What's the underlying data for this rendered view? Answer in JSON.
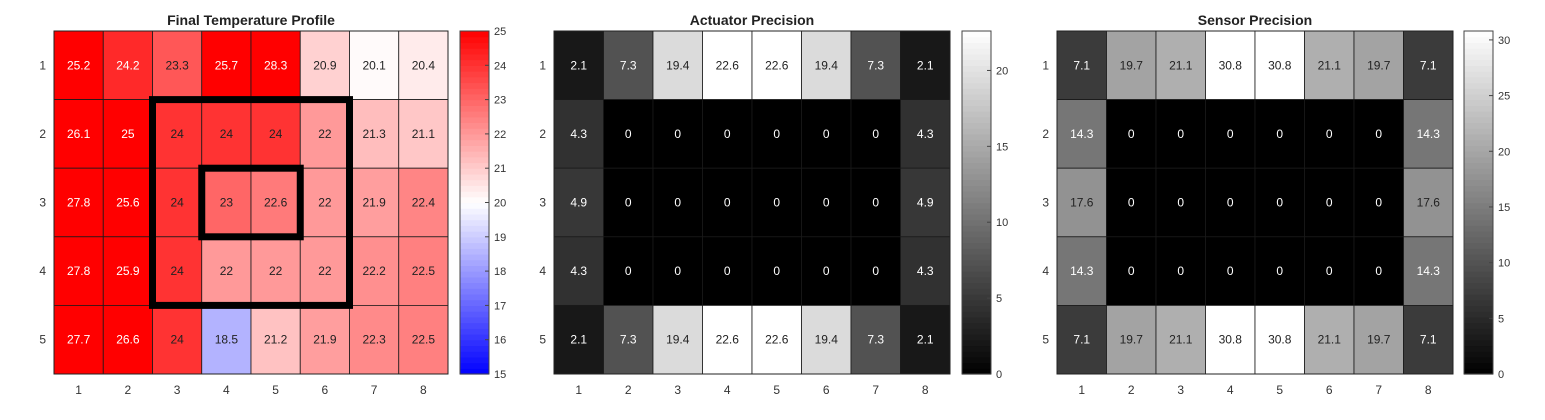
{
  "figure": {
    "background": "#ffffff",
    "grid_line_color": "#1a1a1a"
  },
  "chart_data": [
    {
      "type": "heatmap",
      "title": "Final Temperature Profile",
      "colormap": "blue-white-red",
      "x_ticks": [
        "1",
        "2",
        "3",
        "4",
        "5",
        "6",
        "7",
        "8"
      ],
      "y_ticks": [
        "1",
        "2",
        "3",
        "4",
        "5"
      ],
      "values": [
        [
          25.2,
          24.2,
          23.3,
          25.7,
          28.3,
          20.9,
          20.1,
          20.4
        ],
        [
          26.1,
          25,
          24,
          24,
          24,
          22,
          21.3,
          21.1
        ],
        [
          27.8,
          25.6,
          24,
          23,
          22.6,
          22,
          21.9,
          22.4
        ],
        [
          27.8,
          25.9,
          24,
          22,
          22,
          22,
          22.2,
          22.5
        ],
        [
          27.7,
          26.6,
          24,
          18.5,
          21.2,
          21.9,
          22.3,
          22.5
        ]
      ],
      "clim": [
        15,
        25
      ],
      "colorbar_ticks": [
        15,
        16,
        17,
        18,
        19,
        20,
        21,
        22,
        23,
        24,
        25
      ],
      "outlines": [
        {
          "cols": [
            3,
            6
          ],
          "rows": [
            2,
            4
          ]
        },
        {
          "cols": [
            4,
            5
          ],
          "rows": [
            3,
            3
          ]
        }
      ]
    },
    {
      "type": "heatmap",
      "title": "Actuator Precision",
      "colormap": "gray",
      "x_ticks": [
        "1",
        "2",
        "3",
        "4",
        "5",
        "6",
        "7",
        "8"
      ],
      "y_ticks": [
        "1",
        "2",
        "3",
        "4",
        "5"
      ],
      "values": [
        [
          2.1,
          7.3,
          19.4,
          22.6,
          22.6,
          19.4,
          7.3,
          2.1
        ],
        [
          4.3,
          0,
          0,
          0,
          0,
          0,
          0,
          4.3
        ],
        [
          4.9,
          0,
          0,
          0,
          0,
          0,
          0,
          4.9
        ],
        [
          4.3,
          0,
          0,
          0,
          0,
          0,
          0,
          4.3
        ],
        [
          2.1,
          7.3,
          19.4,
          22.6,
          22.6,
          19.4,
          7.3,
          2.1
        ]
      ],
      "clim": [
        0,
        22.6
      ],
      "colorbar_ticks": [
        0,
        5,
        10,
        15,
        20
      ]
    },
    {
      "type": "heatmap",
      "title": "Sensor Precision",
      "colormap": "gray",
      "x_ticks": [
        "1",
        "2",
        "3",
        "4",
        "5",
        "6",
        "7",
        "8"
      ],
      "y_ticks": [
        "1",
        "2",
        "3",
        "4",
        "5"
      ],
      "values": [
        [
          7.1,
          19.7,
          21.1,
          30.8,
          30.8,
          21.1,
          19.7,
          7.1
        ],
        [
          14.3,
          0,
          0,
          0,
          0,
          0,
          0,
          14.3
        ],
        [
          17.6,
          0,
          0,
          0,
          0,
          0,
          0,
          17.6
        ],
        [
          14.3,
          0,
          0,
          0,
          0,
          0,
          0,
          14.3
        ],
        [
          7.1,
          19.7,
          21.1,
          30.8,
          30.8,
          21.1,
          19.7,
          7.1
        ]
      ],
      "clim": [
        0,
        30.8
      ],
      "colorbar_ticks": [
        0,
        5,
        10,
        15,
        20,
        25,
        30
      ]
    }
  ]
}
